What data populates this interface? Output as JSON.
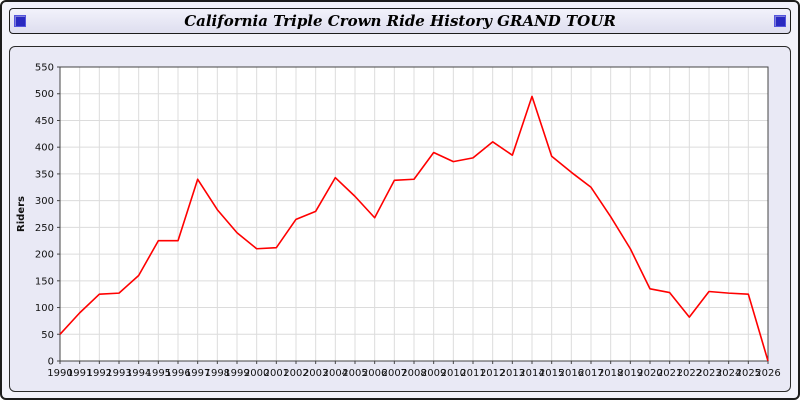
{
  "title_bar": {
    "title": "California Triple Crown Ride History GRAND TOUR"
  },
  "colors": {
    "screen_background": "#f2f2fa",
    "panel_background": "#e9e9f5",
    "plot_background": "#ffffff",
    "grid": "#dcdcdc",
    "axis": "#444444",
    "line": "#ff0000",
    "title_cap_blue": "#2a2ac0"
  },
  "chart_data": {
    "type": "line",
    "title": "California Triple Crown Ride History GRAND TOUR",
    "xlabel": "",
    "ylabel": "Riders",
    "ylim": [
      0,
      550
    ],
    "ytick_step": 50,
    "grid": true,
    "legend_position": "none",
    "series_color": "#ff0000",
    "categories": [
      1990,
      1991,
      1992,
      1993,
      1994,
      1995,
      1996,
      1997,
      1998,
      1999,
      2000,
      2001,
      2002,
      2003,
      2004,
      2005,
      2006,
      2007,
      2008,
      2009,
      2010,
      2011,
      2012,
      2013,
      2014,
      2015,
      2016,
      2017,
      2018,
      2019,
      2020,
      2021,
      2022,
      2023,
      2024,
      2025,
      2026
    ],
    "values": [
      50,
      90,
      125,
      127,
      160,
      225,
      225,
      340,
      283,
      240,
      210,
      212,
      265,
      280,
      343,
      308,
      268,
      338,
      340,
      390,
      373,
      380,
      410,
      385,
      495,
      383,
      353,
      325,
      270,
      210,
      135,
      128,
      82,
      130,
      127,
      125,
      0
    ]
  }
}
